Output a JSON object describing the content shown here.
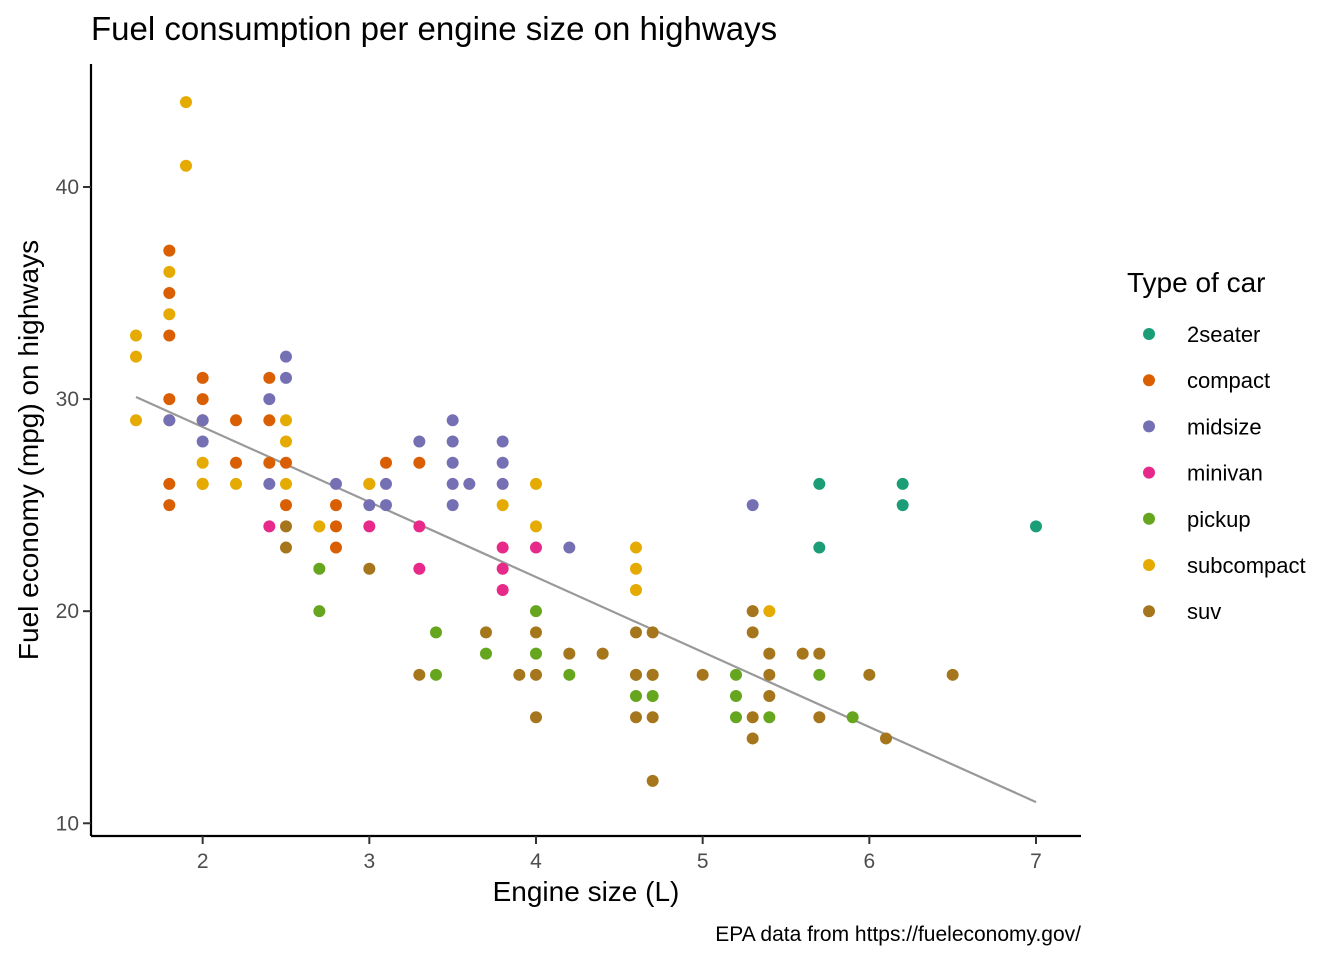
{
  "chart_data": {
    "type": "scatter",
    "title": "Fuel consumption per engine size on highways",
    "xlabel": "Engine size (L)",
    "ylabel": "Fuel economy (mpg) on highways",
    "caption": "EPA data from https://fueleconomy.gov/",
    "xlim": [
      1.33,
      7.27
    ],
    "ylim": [
      9.4,
      45.8
    ],
    "x_ticks": [
      2,
      3,
      4,
      5,
      6,
      7
    ],
    "y_ticks": [
      10,
      20,
      30,
      40
    ],
    "grid": false,
    "legend": {
      "title": "Type of car",
      "placement": "right"
    },
    "trend_line": {
      "color": "#999999",
      "x": [
        1.6,
        7.0
      ],
      "y": [
        30.1,
        11.0
      ]
    },
    "series": [
      {
        "name": "2seater",
        "color": "#1B9E77",
        "points": [
          [
            5.7,
            26
          ],
          [
            5.7,
            23
          ],
          [
            6.2,
            26
          ],
          [
            6.2,
            25
          ],
          [
            7.0,
            24
          ]
        ]
      },
      {
        "name": "compact",
        "color": "#D95F02",
        "points": [
          [
            1.8,
            37
          ],
          [
            1.8,
            35
          ],
          [
            1.8,
            33
          ],
          [
            1.8,
            30
          ],
          [
            1.8,
            29
          ],
          [
            1.8,
            26
          ],
          [
            1.8,
            25
          ],
          [
            2.0,
            31
          ],
          [
            2.0,
            30
          ],
          [
            2.0,
            29
          ],
          [
            2.0,
            26
          ],
          [
            2.2,
            29
          ],
          [
            2.2,
            27
          ],
          [
            2.4,
            31
          ],
          [
            2.4,
            29
          ],
          [
            2.4,
            27
          ],
          [
            2.5,
            27
          ],
          [
            2.5,
            25
          ],
          [
            2.8,
            25
          ],
          [
            2.8,
            24
          ],
          [
            2.8,
            23
          ],
          [
            3.0,
            26
          ],
          [
            3.1,
            27
          ],
          [
            3.3,
            27
          ]
        ]
      },
      {
        "name": "midsize",
        "color": "#7570B3",
        "points": [
          [
            1.8,
            29
          ],
          [
            2.0,
            29
          ],
          [
            2.0,
            28
          ],
          [
            2.4,
            30
          ],
          [
            2.4,
            26
          ],
          [
            2.5,
            32
          ],
          [
            2.5,
            31
          ],
          [
            2.8,
            26
          ],
          [
            3.0,
            25
          ],
          [
            3.1,
            26
          ],
          [
            3.1,
            25
          ],
          [
            3.3,
            28
          ],
          [
            3.5,
            29
          ],
          [
            3.5,
            28
          ],
          [
            3.5,
            27
          ],
          [
            3.5,
            26
          ],
          [
            3.5,
            25
          ],
          [
            3.6,
            26
          ],
          [
            3.8,
            28
          ],
          [
            3.8,
            27
          ],
          [
            3.8,
            26
          ],
          [
            4.2,
            23
          ],
          [
            5.3,
            25
          ]
        ]
      },
      {
        "name": "minivan",
        "color": "#E7298A",
        "points": [
          [
            2.4,
            24
          ],
          [
            3.0,
            24
          ],
          [
            3.3,
            24
          ],
          [
            3.3,
            22
          ],
          [
            3.8,
            23
          ],
          [
            3.8,
            22
          ],
          [
            3.8,
            21
          ],
          [
            4.0,
            23
          ]
        ]
      },
      {
        "name": "pickup",
        "color": "#66A61E",
        "points": [
          [
            2.7,
            22
          ],
          [
            2.7,
            20
          ],
          [
            3.4,
            19
          ],
          [
            3.4,
            17
          ],
          [
            3.7,
            18
          ],
          [
            4.0,
            20
          ],
          [
            4.0,
            18
          ],
          [
            4.2,
            17
          ],
          [
            4.6,
            17
          ],
          [
            4.6,
            16
          ],
          [
            4.7,
            17
          ],
          [
            4.7,
            16
          ],
          [
            5.2,
            17
          ],
          [
            5.2,
            16
          ],
          [
            5.2,
            15
          ],
          [
            5.4,
            15
          ],
          [
            5.7,
            17
          ],
          [
            5.9,
            15
          ]
        ]
      },
      {
        "name": "subcompact",
        "color": "#E6AB02",
        "points": [
          [
            1.6,
            33
          ],
          [
            1.6,
            32
          ],
          [
            1.6,
            29
          ],
          [
            1.8,
            36
          ],
          [
            1.8,
            34
          ],
          [
            1.9,
            44
          ],
          [
            1.9,
            41
          ],
          [
            2.0,
            27
          ],
          [
            2.0,
            26
          ],
          [
            2.2,
            26
          ],
          [
            2.5,
            29
          ],
          [
            2.5,
            28
          ],
          [
            2.5,
            26
          ],
          [
            2.7,
            24
          ],
          [
            3.0,
            26
          ],
          [
            3.8,
            25
          ],
          [
            4.0,
            26
          ],
          [
            4.0,
            24
          ],
          [
            4.6,
            23
          ],
          [
            4.6,
            22
          ],
          [
            4.6,
            21
          ],
          [
            5.4,
            20
          ]
        ]
      },
      {
        "name": "suv",
        "color": "#A6761D",
        "points": [
          [
            2.5,
            24
          ],
          [
            2.5,
            23
          ],
          [
            3.0,
            22
          ],
          [
            3.3,
            17
          ],
          [
            3.7,
            19
          ],
          [
            3.9,
            17
          ],
          [
            4.0,
            19
          ],
          [
            4.0,
            17
          ],
          [
            4.0,
            15
          ],
          [
            4.2,
            18
          ],
          [
            4.4,
            18
          ],
          [
            4.6,
            19
          ],
          [
            4.6,
            17
          ],
          [
            4.6,
            15
          ],
          [
            4.7,
            19
          ],
          [
            4.7,
            17
          ],
          [
            4.7,
            15
          ],
          [
            4.7,
            12
          ],
          [
            5.0,
            17
          ],
          [
            5.3,
            20
          ],
          [
            5.3,
            19
          ],
          [
            5.3,
            15
          ],
          [
            5.3,
            14
          ],
          [
            5.4,
            18
          ],
          [
            5.4,
            17
          ],
          [
            5.4,
            16
          ],
          [
            5.6,
            18
          ],
          [
            5.7,
            18
          ],
          [
            5.7,
            15
          ],
          [
            6.0,
            17
          ],
          [
            6.1,
            14
          ],
          [
            6.5,
            17
          ]
        ]
      }
    ]
  }
}
